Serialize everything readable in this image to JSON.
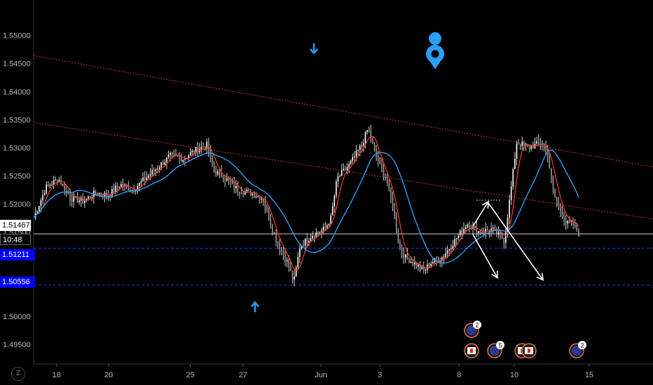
{
  "chart_data": {
    "type": "candlestick",
    "y_axis": {
      "ticks": [
        "1.55000",
        "1.54500",
        "1.54000",
        "1.53500",
        "1.53000",
        "1.52500",
        "1.52000",
        "1.51500",
        "1.50000",
        "1.49500"
      ],
      "tick_values": [
        1.55,
        1.545,
        1.54,
        1.535,
        1.53,
        1.525,
        1.52,
        1.515,
        1.5,
        1.495
      ],
      "ylim": [
        1.4915,
        1.5563
      ]
    },
    "x_axis": {
      "ticks": [
        "18",
        "20",
        "25",
        "27",
        "Jun",
        "3",
        "8",
        "10",
        "15"
      ]
    },
    "price_badges": {
      "current_price": "1.51467",
      "countdown": "10:48",
      "level_1": "1.51211",
      "level_2": "1.50556"
    },
    "levels": {
      "current": 1.51467,
      "level_1": 1.51211,
      "level_2": 1.50556
    },
    "price_path": [
      [
        0,
        1.5175
      ],
      [
        0.02,
        1.523
      ],
      [
        0.04,
        1.5245
      ],
      [
        0.06,
        1.521
      ],
      [
        0.08,
        1.5205
      ],
      [
        0.1,
        1.522
      ],
      [
        0.12,
        1.5215
      ],
      [
        0.14,
        1.5235
      ],
      [
        0.16,
        1.5225
      ],
      [
        0.18,
        1.5245
      ],
      [
        0.2,
        1.5265
      ],
      [
        0.22,
        1.5285
      ],
      [
        0.24,
        1.528
      ],
      [
        0.26,
        1.5295
      ],
      [
        0.28,
        1.5305
      ],
      [
        0.29,
        1.526
      ],
      [
        0.31,
        1.5245
      ],
      [
        0.33,
        1.5225
      ],
      [
        0.35,
        1.522
      ],
      [
        0.37,
        1.521
      ],
      [
        0.39,
        1.514
      ],
      [
        0.41,
        1.5095
      ],
      [
        0.42,
        1.506
      ],
      [
        0.43,
        1.5125
      ],
      [
        0.45,
        1.5145
      ],
      [
        0.47,
        1.5155
      ],
      [
        0.48,
        1.5175
      ],
      [
        0.49,
        1.5245
      ],
      [
        0.51,
        1.527
      ],
      [
        0.53,
        1.5305
      ],
      [
        0.54,
        1.5335
      ],
      [
        0.55,
        1.5295
      ],
      [
        0.56,
        1.5265
      ],
      [
        0.57,
        1.524
      ],
      [
        0.58,
        1.5195
      ],
      [
        0.59,
        1.5125
      ],
      [
        0.6,
        1.5105
      ],
      [
        0.62,
        1.509
      ],
      [
        0.63,
        1.508
      ],
      [
        0.64,
        1.5095
      ],
      [
        0.66,
        1.5105
      ],
      [
        0.68,
        1.5135
      ],
      [
        0.7,
        1.5165
      ],
      [
        0.72,
        1.515
      ],
      [
        0.74,
        1.5155
      ],
      [
        0.76,
        1.5135
      ],
      [
        0.77,
        1.522
      ],
      [
        0.78,
        1.531
      ],
      [
        0.8,
        1.53
      ],
      [
        0.82,
        1.531
      ],
      [
        0.83,
        1.5285
      ],
      [
        0.84,
        1.5215
      ],
      [
        0.86,
        1.5165
      ],
      [
        0.87,
        1.5165
      ],
      [
        0.88,
        1.5147
      ]
    ],
    "trendlines": [
      {
        "name": "upper-resistance",
        "from": [
          0,
          1.5464
        ],
        "to": [
          1,
          1.5266
        ],
        "color": "#c0392b",
        "style": "dotted"
      },
      {
        "name": "lower-resistance",
        "from": [
          0,
          1.5345
        ],
        "to": [
          1,
          1.5173
        ],
        "color": "#c0392b",
        "style": "dotted"
      }
    ],
    "moving_averages": [
      {
        "color": "#ff3b30",
        "period": "fast"
      },
      {
        "color": "#2a9df4",
        "period": "slow"
      }
    ],
    "projection_arrows": {
      "color": "#ffffff"
    },
    "markers": {
      "arrow_color": "#2a9df4"
    },
    "event_icons": [
      {
        "label": "2",
        "country": "AU"
      },
      {
        "label": "",
        "country": "CA"
      },
      {
        "label": "5",
        "country": "AU"
      },
      {
        "label": "",
        "country": "CA"
      },
      {
        "label": "",
        "country": "CA"
      },
      {
        "label": "2",
        "country": "AU"
      }
    ],
    "axis_button": "Z",
    "grid": false,
    "background": "#000000"
  }
}
